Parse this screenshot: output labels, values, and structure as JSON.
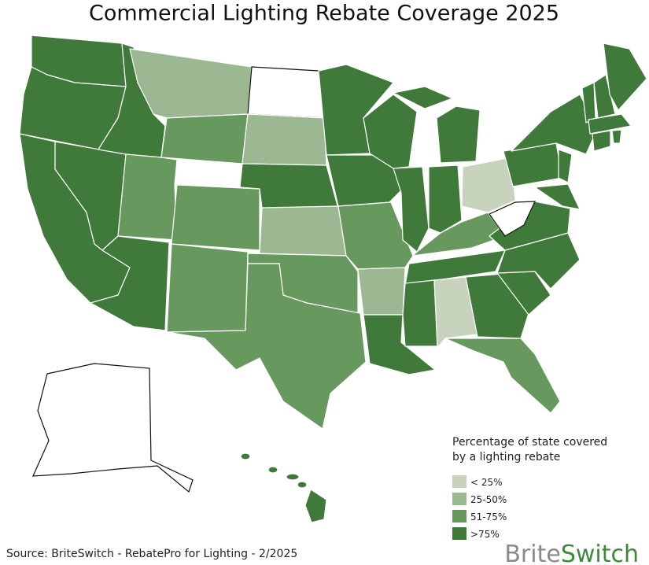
{
  "header": {
    "title": "Commercial Lighting Rebate Coverage 2025"
  },
  "legend": {
    "title": [
      "Percentage of state covered",
      "by a lighting rebate"
    ],
    "items": [
      {
        "label": "< 25%",
        "color": "#c8d3bd"
      },
      {
        "label": "25-50%",
        "color": "#9cb892"
      },
      {
        "label": "51-75%",
        "color": "#67995e"
      },
      {
        "label": ">75%",
        "color": "#407a3b"
      }
    ]
  },
  "footer": {
    "source": "Source: BriteSwitch - RebatePro for Lighting - 2/2025",
    "logo": {
      "first": "Brite",
      "second": "Switch"
    }
  }
}
